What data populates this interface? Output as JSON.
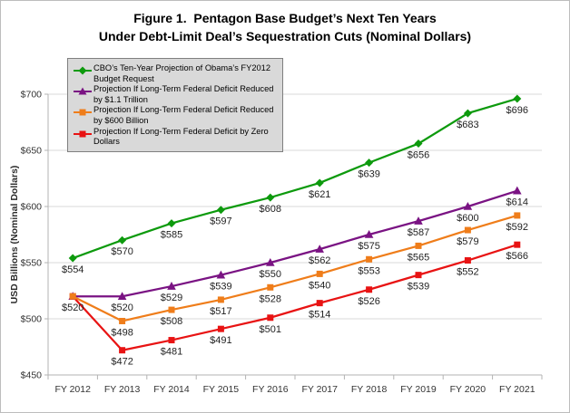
{
  "figure": {
    "title_line1": "Figure 1.  Pentagon Base Budget’s Next Ten Years",
    "title_line2": "Under Debt-Limit Deal’s Sequestration Cuts (Nominal Dollars)"
  },
  "chart_data": {
    "type": "line",
    "title": "Figure 1. Pentagon Base Budget’s Next Ten Years Under Debt-Limit Deal’s Sequestration Cuts (Nominal Dollars)",
    "xlabel": "",
    "ylabel": "USD Billions (Nominal Dollars)",
    "categories": [
      "FY 2012",
      "FY 2013",
      "FY 2014",
      "FY 2015",
      "FY 2016",
      "FY 2017",
      "FY 2018",
      "FY 2019",
      "FY 2020",
      "FY 2021"
    ],
    "ylim": [
      450,
      700
    ],
    "ytick_interval": 50,
    "ytick_labels": [
      "$450",
      "$500",
      "$550",
      "$600",
      "$650",
      "$700"
    ],
    "grid": true,
    "legend": {
      "position": "top-left-inside",
      "bg": "#d9d9d9",
      "border": "#7f7f7f"
    },
    "series": [
      {
        "name": "CBO’s Ten-Year Projection of Obama’s FY2012 Budget Request",
        "color": "#0d9a0d",
        "marker": "diamond",
        "values": [
          554,
          570,
          585,
          597,
          608,
          621,
          639,
          656,
          683,
          696
        ],
        "labels": [
          "$554",
          "$570",
          "$585",
          "$597",
          "$608",
          "$621",
          "$639",
          "$656",
          "$683",
          "$696"
        ]
      },
      {
        "name": "Projection If Long-Term Federal Deficit Reduced by $1.1 Trillion",
        "color": "#7a1383",
        "marker": "triangle",
        "values": [
          520,
          520,
          529,
          539,
          550,
          562,
          575,
          587,
          600,
          614
        ],
        "labels": [
          "$520",
          "$520",
          "$529",
          "$539",
          "$550",
          "$562",
          "$575",
          "$587",
          "$600",
          "$614"
        ]
      },
      {
        "name": "Projection If Long-Term Federal Deficit Reduced by $600 Billion",
        "color": "#ef7d1a",
        "marker": "square",
        "values": [
          520,
          498,
          508,
          517,
          528,
          540,
          553,
          565,
          579,
          592
        ],
        "labels": [
          "$520",
          "$498",
          "$508",
          "$517",
          "$528",
          "$540",
          "$553",
          "$565",
          "$579",
          "$592"
        ]
      },
      {
        "name": "Projection If Long-Term Federal Deficit by Zero Dollars",
        "color": "#e81313",
        "marker": "square",
        "values": [
          520,
          472,
          481,
          491,
          501,
          514,
          526,
          539,
          552,
          566
        ],
        "labels": [
          "$520",
          "$472",
          "$481",
          "$491",
          "$501",
          "$514",
          "$526",
          "$539",
          "$552",
          "$566"
        ]
      }
    ]
  }
}
